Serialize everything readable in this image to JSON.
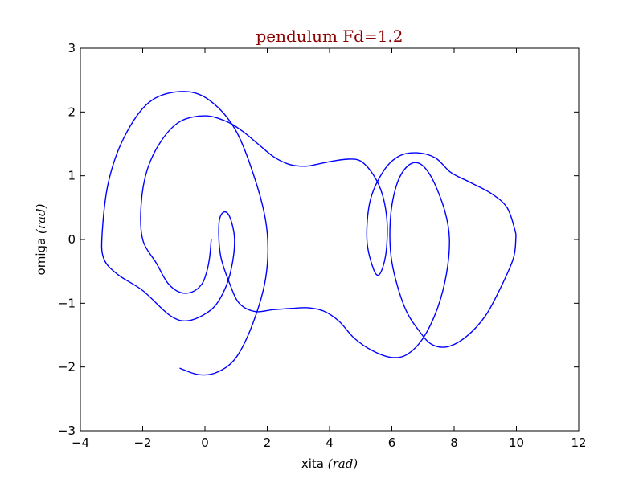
{
  "chart_data": {
    "type": "line",
    "title": "pendulum Fd=1.2",
    "title_color": "#8b0000",
    "xlabel": "xita",
    "xlabel_unit": "(rad)",
    "ylabel": "omiga",
    "ylabel_unit": "(rad)",
    "xlim": [
      -4,
      12
    ],
    "ylim": [
      -3,
      3
    ],
    "xticks": [
      -4,
      -2,
      0,
      2,
      4,
      6,
      8,
      10,
      12
    ],
    "yticks": [
      -3,
      -2,
      -1,
      0,
      1,
      2,
      3
    ],
    "xtick_labels": [
      "−4",
      "−2",
      "0",
      "2",
      "4",
      "6",
      "8",
      "10",
      "12"
    ],
    "ytick_labels": [
      "−3",
      "−2",
      "−1",
      "0",
      "1",
      "2",
      "3"
    ],
    "grid": false,
    "series": [
      {
        "color": "#0000ff",
        "points": [
          [
            0.2,
            0.0
          ],
          [
            0.15,
            -0.28
          ],
          [
            0.05,
            -0.52
          ],
          [
            -0.1,
            -0.7
          ],
          [
            -0.4,
            -0.82
          ],
          [
            -0.8,
            -0.83
          ],
          [
            -1.2,
            -0.68
          ],
          [
            -1.55,
            -0.38
          ],
          [
            -2.0,
            0.0
          ],
          [
            -2.05,
            0.55
          ],
          [
            -1.85,
            1.1
          ],
          [
            -1.4,
            1.55
          ],
          [
            -0.8,
            1.85
          ],
          [
            0.0,
            1.94
          ],
          [
            0.7,
            1.85
          ],
          [
            1.2,
            1.7
          ],
          [
            1.7,
            1.5
          ],
          [
            2.2,
            1.3
          ],
          [
            2.7,
            1.18
          ],
          [
            3.2,
            1.15
          ],
          [
            3.6,
            1.18
          ],
          [
            4.1,
            1.23
          ],
          [
            4.6,
            1.26
          ],
          [
            5.0,
            1.23
          ],
          [
            5.4,
            1.02
          ],
          [
            5.7,
            0.7
          ],
          [
            5.85,
            0.25
          ],
          [
            5.8,
            -0.25
          ],
          [
            5.6,
            -0.55
          ],
          [
            5.4,
            -0.45
          ],
          [
            5.2,
            0.0
          ],
          [
            5.3,
            0.6
          ],
          [
            5.7,
            1.05
          ],
          [
            6.2,
            1.3
          ],
          [
            6.8,
            1.36
          ],
          [
            7.4,
            1.28
          ],
          [
            7.9,
            1.05
          ],
          [
            8.5,
            0.9
          ],
          [
            9.2,
            0.72
          ],
          [
            9.7,
            0.5
          ],
          [
            9.95,
            0.15
          ],
          [
            9.98,
            0.0
          ],
          [
            9.9,
            -0.3
          ],
          [
            9.5,
            -0.75
          ],
          [
            9.0,
            -1.2
          ],
          [
            8.4,
            -1.52
          ],
          [
            7.8,
            -1.68
          ],
          [
            7.3,
            -1.65
          ],
          [
            6.9,
            -1.45
          ],
          [
            6.4,
            -1.05
          ],
          [
            6.0,
            -0.35
          ],
          [
            5.95,
            0.3
          ],
          [
            6.15,
            0.85
          ],
          [
            6.5,
            1.15
          ],
          [
            6.9,
            1.19
          ],
          [
            7.3,
            0.95
          ],
          [
            7.7,
            0.45
          ],
          [
            7.85,
            0.0
          ],
          [
            7.75,
            -0.55
          ],
          [
            7.45,
            -1.1
          ],
          [
            7.0,
            -1.55
          ],
          [
            6.5,
            -1.8
          ],
          [
            6.0,
            -1.85
          ],
          [
            5.4,
            -1.75
          ],
          [
            4.8,
            -1.55
          ],
          [
            4.3,
            -1.28
          ],
          [
            3.8,
            -1.12
          ],
          [
            3.3,
            -1.07
          ],
          [
            2.8,
            -1.08
          ],
          [
            2.2,
            -1.1
          ],
          [
            1.6,
            -1.13
          ],
          [
            1.1,
            -1.0
          ],
          [
            0.8,
            -0.7
          ],
          [
            0.5,
            -0.25
          ],
          [
            0.45,
            0.25
          ],
          [
            0.6,
            0.43
          ],
          [
            0.8,
            0.35
          ],
          [
            0.95,
            0.0
          ],
          [
            0.85,
            -0.45
          ],
          [
            0.6,
            -0.82
          ],
          [
            0.2,
            -1.1
          ],
          [
            -0.5,
            -1.27
          ],
          [
            -1.1,
            -1.2
          ],
          [
            -2.0,
            -0.8
          ],
          [
            -2.8,
            -0.55
          ],
          [
            -3.25,
            -0.3
          ],
          [
            -3.3,
            0.1
          ],
          [
            -3.1,
            0.9
          ],
          [
            -2.6,
            1.6
          ],
          [
            -1.8,
            2.15
          ],
          [
            -0.8,
            2.32
          ],
          [
            0.1,
            2.2
          ],
          [
            1.0,
            1.7
          ],
          [
            1.7,
            0.8
          ],
          [
            2.0,
            0.1
          ],
          [
            1.95,
            -0.6
          ],
          [
            1.55,
            -1.3
          ],
          [
            1.0,
            -1.85
          ],
          [
            0.4,
            -2.08
          ],
          [
            -0.2,
            -2.12
          ],
          [
            -0.8,
            -2.02
          ]
        ]
      }
    ]
  }
}
